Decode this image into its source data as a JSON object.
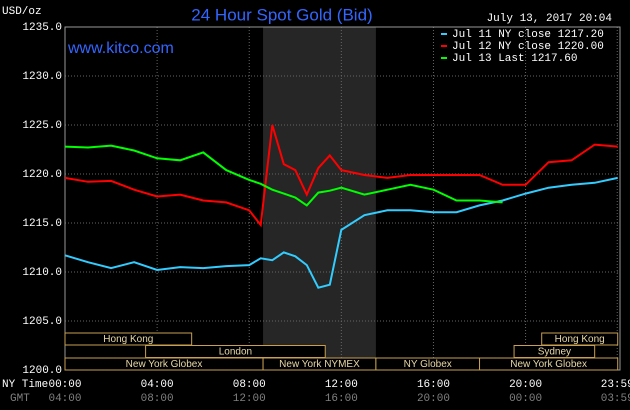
{
  "chart_data": {
    "type": "line",
    "title": "24 Hour Spot Gold (Bid)",
    "subtitle": "www.kitco.com",
    "date_label": "July 13, 2017 20:04",
    "y_label": "USD/oz",
    "x_label": "NY Time",
    "x2_label": "GMT",
    "x": [
      0,
      1,
      2,
      3,
      4,
      5,
      6,
      7,
      8,
      8.5,
      9,
      9.5,
      10,
      10.5,
      11,
      11.5,
      12,
      13,
      14,
      15,
      16,
      17,
      18,
      19,
      20,
      21,
      22,
      23,
      24
    ],
    "series": [
      {
        "name": "Jul 11 NY close 1217.20",
        "color": "#33ccff",
        "values": [
          1211.7,
          1211,
          1210.4,
          1211,
          1210.2,
          1210.5,
          1210.4,
          1210.6,
          1210.7,
          1211.4,
          1211.2,
          1212,
          1211.6,
          1210.7,
          1208.4,
          1208.7,
          1214.3,
          1215.8,
          1216.3,
          1216.3,
          1216.1,
          1216.1,
          1216.8,
          1217.3,
          1218,
          1218.6,
          1218.9,
          1219.1,
          1219.6
        ]
      },
      {
        "name": "Jul 12 NY close 1220.00",
        "color": "#ff0000",
        "values": [
          1219.6,
          1219.2,
          1219.3,
          1218.4,
          1217.7,
          1217.9,
          1217.3,
          1217.1,
          1216.3,
          1214.8,
          1225,
          1221,
          1220.4,
          1217.9,
          1220.6,
          1221.9,
          1220.4,
          1219.9,
          1219.6,
          1219.9,
          1219.9,
          1219.9,
          1219.9,
          1218.9,
          1218.9,
          1221.2,
          1221.4,
          1223,
          1222.8
        ]
      },
      {
        "name": "Jul 13 Last 1217.60",
        "color": "#00ff00",
        "values": [
          1222.8,
          1222.7,
          1222.9,
          1222.4,
          1221.6,
          1221.4,
          1222.2,
          1220.4,
          1219.4,
          1219,
          1218.4,
          1218,
          1217.6,
          1216.8,
          1218.1,
          1218.3,
          1218.6,
          1217.9,
          1218.4,
          1218.9,
          1218.4,
          1217.3,
          1217.3,
          1217.1,
          null,
          null,
          null,
          null,
          null
        ]
      }
    ],
    "xlim": [
      0,
      24.1
    ],
    "ylim": [
      1200,
      1235
    ],
    "yticks": [
      {
        "value": 1200,
        "label": "1200.0"
      },
      {
        "value": 1205,
        "label": "1205.0"
      },
      {
        "value": 1210,
        "label": "1210.0"
      },
      {
        "value": 1215,
        "label": "1215.0"
      },
      {
        "value": 1220,
        "label": "1220.0"
      },
      {
        "value": 1225,
        "label": "1225.0"
      },
      {
        "value": 1230,
        "label": "1230.0"
      },
      {
        "value": 1235,
        "label": "1235.0"
      }
    ],
    "xticks": [
      {
        "value": 0,
        "label": "00:00"
      },
      {
        "value": 4,
        "label": "04:00"
      },
      {
        "value": 8,
        "label": "08:00"
      },
      {
        "value": 12,
        "label": "12:00"
      },
      {
        "value": 16,
        "label": "16:00"
      },
      {
        "value": 20,
        "label": "20:00"
      },
      {
        "value": 23.98,
        "label": "23:59"
      }
    ],
    "x2ticks": [
      {
        "value": 0,
        "label": "04:00"
      },
      {
        "value": 4,
        "label": "08:00"
      },
      {
        "value": 8,
        "label": "12:00"
      },
      {
        "value": 12,
        "label": "16:00"
      },
      {
        "value": 16,
        "label": "20:00"
      },
      {
        "value": 20,
        "label": "00:00"
      },
      {
        "value": 23.98,
        "label": "03:59"
      }
    ],
    "grid": true,
    "sessions": [
      {
        "label": "Hong Kong",
        "start": 0,
        "end": 5.5,
        "row": 0
      },
      {
        "label": "Hong Kong",
        "start": 20.7,
        "end": 24,
        "row": 0
      },
      {
        "label": "London",
        "start": 3.5,
        "end": 11.3,
        "row": 1
      },
      {
        "label": "Sydney",
        "start": 19.5,
        "end": 23,
        "row": 1
      },
      {
        "label": "New York Globex",
        "start": 0,
        "end": 8.6,
        "row": 2
      },
      {
        "label": "New York NYMEX",
        "start": 8.6,
        "end": 13.5,
        "row": 2,
        "shaded": true
      },
      {
        "label": "NY Globex",
        "start": 13.5,
        "end": 18,
        "row": 2
      },
      {
        "label": "New York Globex",
        "start": 18,
        "end": 24,
        "row": 2
      }
    ]
  }
}
